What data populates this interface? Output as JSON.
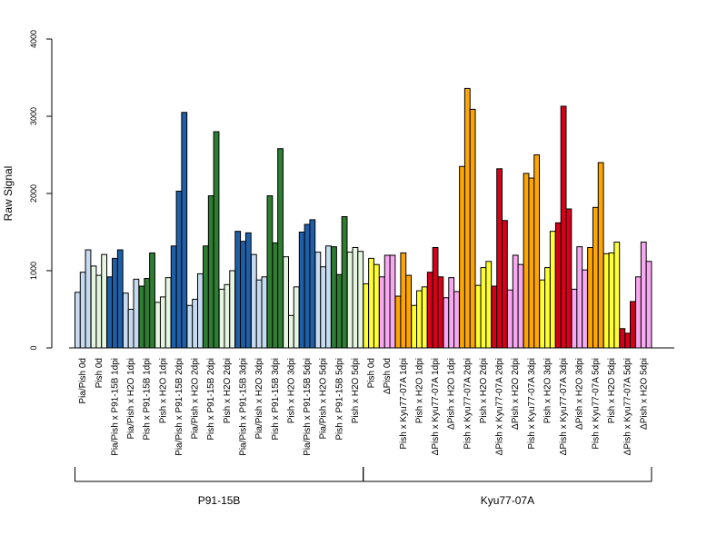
{
  "chart_data": {
    "type": "bar",
    "ylabel": "Raw Signal",
    "ylim": [
      0,
      4000
    ],
    "yticks": [
      0,
      1000,
      2000,
      3000,
      4000
    ],
    "colors": {
      "light_blue": "#c6dbef",
      "dark_blue": "#1f5fa8",
      "light_green": "#e5f5e0",
      "dark_green": "#2e7d32",
      "yellow": "#ffff33",
      "pink": "#f7a8f0",
      "orange": "#ffa500",
      "red": "#d7001b"
    },
    "categories": [
      {
        "label": "Pia/Pish 0d",
        "color": "light_blue",
        "values": [
          720,
          980,
          1270
        ]
      },
      {
        "label": "Pish 0d",
        "color": "light_green",
        "values": [
          1060,
          940,
          1210
        ]
      },
      {
        "label": "Pia/Pish x P91-15B 1dpi",
        "color": "dark_blue",
        "values": [
          920,
          1160,
          1270
        ]
      },
      {
        "label": "Pia/Pish x H2O 1dpi",
        "color": "light_blue",
        "values": [
          710,
          500,
          890
        ]
      },
      {
        "label": "Pish x P91-15B 1dpi",
        "color": "dark_green",
        "values": [
          800,
          900,
          1230
        ]
      },
      {
        "label": "Pish x H2O 1dpi",
        "color": "light_green",
        "values": [
          590,
          660,
          910
        ]
      },
      {
        "label": "Pia/Pish x P91-15B 2dpi",
        "color": "dark_blue",
        "values": [
          1320,
          2030,
          3050
        ]
      },
      {
        "label": "Pia/Pish x H2O 2dpi",
        "color": "light_blue",
        "values": [
          550,
          630,
          960
        ]
      },
      {
        "label": "Pish x P91-15B 2dpi",
        "color": "dark_green",
        "values": [
          1320,
          1970,
          2800
        ]
      },
      {
        "label": "Pish x H2O 2dpi",
        "color": "light_green",
        "values": [
          760,
          820,
          1000
        ]
      },
      {
        "label": "Pia/Pish x P91-15B 3dpi",
        "color": "dark_blue",
        "values": [
          1510,
          1380,
          1490
        ]
      },
      {
        "label": "Pia/Pish x H2O 3dpi",
        "color": "light_blue",
        "values": [
          1210,
          880,
          920
        ]
      },
      {
        "label": "Pish x P91-15B 3dpi",
        "color": "dark_green",
        "values": [
          1970,
          1360,
          2580
        ]
      },
      {
        "label": "Pish x H2O 3dpi",
        "color": "light_green",
        "values": [
          1180,
          420,
          790
        ]
      },
      {
        "label": "Pia/Pish x P91-15B 5dpi",
        "color": "dark_blue",
        "values": [
          1500,
          1600,
          1660
        ]
      },
      {
        "label": "Pia/Pish x H2O 5dpi",
        "color": "light_blue",
        "values": [
          1240,
          1050,
          1320
        ]
      },
      {
        "label": "Pish x P91-15B 5dpi",
        "color": "dark_green",
        "values": [
          1310,
          950,
          1700
        ]
      },
      {
        "label": "Pish x H2O 5dpi",
        "color": "light_green",
        "values": [
          1240,
          1300,
          1250
        ]
      },
      {
        "label": "Pish 0d",
        "color": "yellow",
        "values": [
          830,
          1160,
          1080
        ]
      },
      {
        "label": "ΔPish 0d",
        "color": "pink",
        "values": [
          920,
          1200,
          1200
        ]
      },
      {
        "label": "Pish x Kyu77-07A 1dpi",
        "color": "orange",
        "values": [
          670,
          1230,
          940
        ]
      },
      {
        "label": "Pish x H2O 1dpi",
        "color": "yellow",
        "values": [
          550,
          740,
          790
        ]
      },
      {
        "label": "ΔPish x Kyu77-07A 1dpi",
        "color": "red",
        "values": [
          980,
          1300,
          920
        ]
      },
      {
        "label": "ΔPish x H2O 1dpi",
        "color": "pink",
        "values": [
          650,
          910,
          730
        ]
      },
      {
        "label": "Pish x Kyu77-07A 2dpi",
        "color": "orange",
        "values": [
          2350,
          3360,
          3090
        ]
      },
      {
        "label": "Pish x H2O 2dpi",
        "color": "yellow",
        "values": [
          810,
          1040,
          1120
        ]
      },
      {
        "label": "ΔPish x Kyu77-07A 2dpi",
        "color": "red",
        "values": [
          800,
          2320,
          1650
        ]
      },
      {
        "label": "ΔPish x H2O 2dpi",
        "color": "pink",
        "values": [
          750,
          1200,
          1080
        ]
      },
      {
        "label": "Pish x Kyu77-07A 3dpi",
        "color": "orange",
        "values": [
          2260,
          2200,
          2500
        ]
      },
      {
        "label": "Pish x H2O 3dpi",
        "color": "yellow",
        "values": [
          880,
          1040,
          1510
        ]
      },
      {
        "label": "ΔPish x Kyu77-07A 3dpi",
        "color": "red",
        "values": [
          1620,
          3130,
          1800
        ]
      },
      {
        "label": "ΔPish x H2O 3dpi",
        "color": "pink",
        "values": [
          760,
          1310,
          1010
        ]
      },
      {
        "label": "Pish x Kyu77-07A 5dpi",
        "color": "orange",
        "values": [
          1300,
          1820,
          2400
        ]
      },
      {
        "label": "Pish x H2O 5dpi",
        "color": "yellow",
        "values": [
          1220,
          1230,
          1370
        ]
      },
      {
        "label": "ΔPish x Kyu77-07A 5dpi",
        "color": "red",
        "values": [
          250,
          190,
          600
        ]
      },
      {
        "label": "ΔPish x H2O 5dpi",
        "color": "pink",
        "values": [
          920,
          1370,
          1120
        ]
      }
    ],
    "groups": [
      {
        "label": "P91-15B",
        "from": 0,
        "to": 17
      },
      {
        "label": "Kyu77-07A",
        "from": 18,
        "to": 35
      }
    ]
  }
}
